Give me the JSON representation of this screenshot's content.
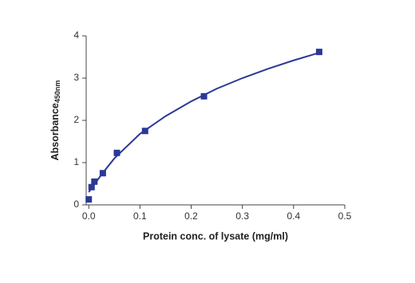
{
  "chart_data": {
    "type": "scatter",
    "x_label": "Protein conc. of lysate (mg/ml)",
    "y_label": "Absorbance",
    "y_label_sub": "450nm",
    "series": [
      {
        "mode": "markers",
        "marker": "square",
        "color": "#2b3896",
        "x": [
          0,
          0.0055,
          0.011,
          0.0275,
          0.055,
          0.11,
          0.225,
          0.45
        ],
        "values": [
          0.13,
          0.42,
          0.55,
          0.75,
          1.23,
          1.75,
          2.57,
          3.62
        ]
      },
      {
        "mode": "line",
        "color": "#2b3896",
        "x": [
          0,
          0.025,
          0.05,
          0.1,
          0.15,
          0.2,
          0.25,
          0.3,
          0.35,
          0.4,
          0.45
        ],
        "values": [
          0.3,
          0.72,
          1.1,
          1.68,
          2.1,
          2.45,
          2.75,
          3.0,
          3.22,
          3.42,
          3.6
        ]
      }
    ],
    "xlim": [
      -0.005,
      0.5
    ],
    "ylim": [
      0,
      4
    ],
    "xticks": [
      {
        "value": 0,
        "label": "0.0"
      },
      0.1,
      0.2,
      0.3,
      0.4,
      0.5
    ],
    "yticks": [
      0,
      1,
      2,
      3,
      4
    ],
    "grid": false
  }
}
